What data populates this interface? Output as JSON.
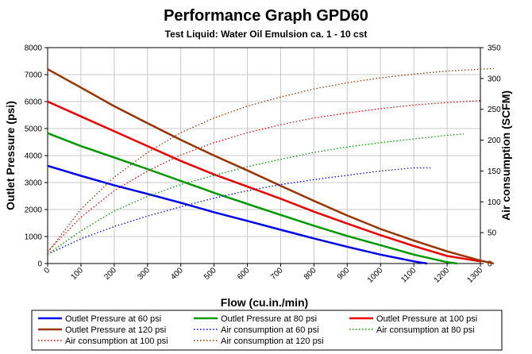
{
  "chart_data": {
    "type": "line",
    "title": "Performance Graph GPD60",
    "subtitle": "Test Liquid: Water Oil Emulsion ca. 1 - 10 cst",
    "xlabel": "Flow (cu.in./min)",
    "ylabel": "Outlet Pressure (psi)",
    "y2label": "Air consumption (SCFM)",
    "xlim": [
      0,
      1300
    ],
    "ylim": [
      0,
      8000
    ],
    "y2lim": [
      0,
      350
    ],
    "xticks": [
      "0",
      "100",
      "200",
      "300",
      "400",
      "500",
      "600",
      "700",
      "800",
      "900",
      "1000",
      "1100",
      "1200",
      "1300"
    ],
    "xtick_values": [
      0,
      100,
      200,
      300,
      400,
      500,
      600,
      700,
      800,
      900,
      1000,
      1100,
      1200,
      1300
    ],
    "yticks": [
      "0",
      "1000",
      "2000",
      "3000",
      "4000",
      "5000",
      "6000",
      "7000",
      "8000"
    ],
    "ytick_values": [
      0,
      1000,
      2000,
      3000,
      4000,
      5000,
      6000,
      7000,
      8000
    ],
    "y2ticks": [
      "0",
      "50",
      "100",
      "150",
      "200",
      "250",
      "300",
      "350"
    ],
    "y2tick_values": [
      0,
      50,
      100,
      150,
      200,
      250,
      300,
      350
    ],
    "grid": true,
    "legend_position": "bottom",
    "series": [
      {
        "name": "Outlet Pressure at 60 psi",
        "axis": "left",
        "style": "solid",
        "color": "#0000ee",
        "x": [
          0,
          100,
          200,
          300,
          400,
          500,
          600,
          700,
          800,
          900,
          1000,
          1100,
          1140
        ],
        "values": [
          3620,
          3250,
          2900,
          2580,
          2250,
          1900,
          1580,
          1250,
          930,
          620,
          330,
          80,
          0
        ]
      },
      {
        "name": "Outlet Pressure at 80 psi",
        "axis": "left",
        "style": "solid",
        "color": "#009900",
        "x": [
          0,
          100,
          200,
          300,
          400,
          500,
          600,
          700,
          800,
          900,
          1000,
          1100,
          1200,
          1230
        ],
        "values": [
          4830,
          4350,
          3930,
          3500,
          3060,
          2620,
          2210,
          1800,
          1400,
          1020,
          680,
          330,
          50,
          0
        ]
      },
      {
        "name": "Outlet Pressure at 100 psi",
        "axis": "left",
        "style": "solid",
        "color": "#ee0000",
        "x": [
          0,
          100,
          200,
          300,
          400,
          500,
          600,
          700,
          800,
          900,
          1000,
          1100,
          1200,
          1300
        ],
        "values": [
          6000,
          5450,
          4900,
          4350,
          3800,
          3300,
          2850,
          2400,
          1920,
          1480,
          1050,
          650,
          280,
          80
        ]
      },
      {
        "name": "Outlet Pressure at 120 psi",
        "axis": "left",
        "style": "solid",
        "color": "#993300",
        "x": [
          0,
          100,
          200,
          300,
          400,
          500,
          600,
          700,
          800,
          900,
          1000,
          1100,
          1200,
          1300,
          1340
        ],
        "values": [
          7200,
          6520,
          5830,
          5200,
          4580,
          4000,
          3450,
          2880,
          2320,
          1780,
          1280,
          850,
          450,
          110,
          0
        ]
      },
      {
        "name": "Air consumption at 60 psi",
        "axis": "right",
        "style": "dotted",
        "color": "#0000ee",
        "x": [
          0,
          100,
          200,
          300,
          400,
          500,
          600,
          700,
          800,
          900,
          1000,
          1100,
          1150
        ],
        "values": [
          15,
          40,
          60,
          77,
          92,
          106,
          118,
          128,
          136,
          143,
          150,
          155,
          155
        ]
      },
      {
        "name": "Air consumption at 80 psi",
        "axis": "right",
        "style": "dotted",
        "color": "#009900",
        "x": [
          0,
          100,
          200,
          300,
          400,
          500,
          600,
          700,
          800,
          900,
          1000,
          1100,
          1200,
          1250
        ],
        "values": [
          15,
          53,
          85,
          109,
          128,
          143,
          157,
          169,
          180,
          189,
          196,
          202,
          208,
          210
        ]
      },
      {
        "name": "Air consumption at 100 psi",
        "axis": "right",
        "style": "dotted",
        "color": "#ee0000",
        "x": [
          0,
          100,
          200,
          300,
          400,
          500,
          600,
          700,
          800,
          900,
          1000,
          1100,
          1200,
          1300
        ],
        "values": [
          20,
          75,
          118,
          150,
          176,
          196,
          212,
          225,
          236,
          244,
          251,
          257,
          261,
          264
        ]
      },
      {
        "name": "Air consumption at 120 psi",
        "axis": "right",
        "style": "dotted",
        "color": "#993300",
        "x": [
          0,
          100,
          200,
          300,
          400,
          500,
          600,
          700,
          800,
          900,
          1000,
          1100,
          1200,
          1300,
          1340
        ],
        "values": [
          18,
          88,
          140,
          180,
          212,
          236,
          255,
          270,
          283,
          293,
          301,
          307,
          312,
          315,
          316
        ]
      }
    ]
  }
}
